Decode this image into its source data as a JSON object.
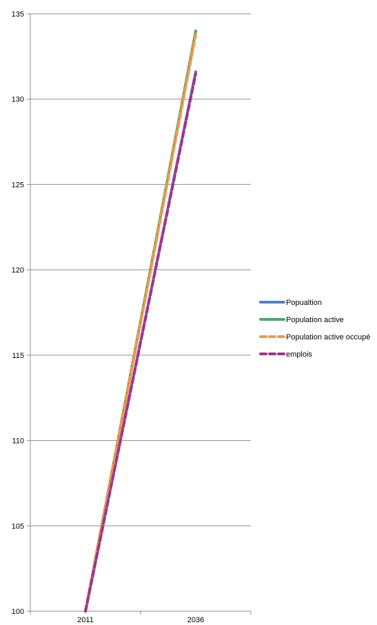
{
  "chart_data": {
    "type": "line",
    "title": "",
    "xlabel": "",
    "ylabel": "",
    "categories": [
      "2011",
      "2036"
    ],
    "ylim": [
      100,
      135
    ],
    "yticks": [
      100,
      105,
      110,
      115,
      120,
      125,
      130,
      135
    ],
    "grid": true,
    "legend_position": "right",
    "series": [
      {
        "name": "Popualtion",
        "values": [
          100,
          131.6
        ],
        "color": "#4f81bd",
        "dash": "solid"
      },
      {
        "name": "Population active",
        "values": [
          100,
          134.0
        ],
        "color": "#4ea66f",
        "dash": "solid"
      },
      {
        "name": "Population active occupé",
        "values": [
          100,
          133.8
        ],
        "color": "#f79646",
        "dash": "dashed"
      },
      {
        "name": "emplois",
        "values": [
          100,
          131.5
        ],
        "color": "#a8308c",
        "dash": "dashed"
      }
    ]
  }
}
